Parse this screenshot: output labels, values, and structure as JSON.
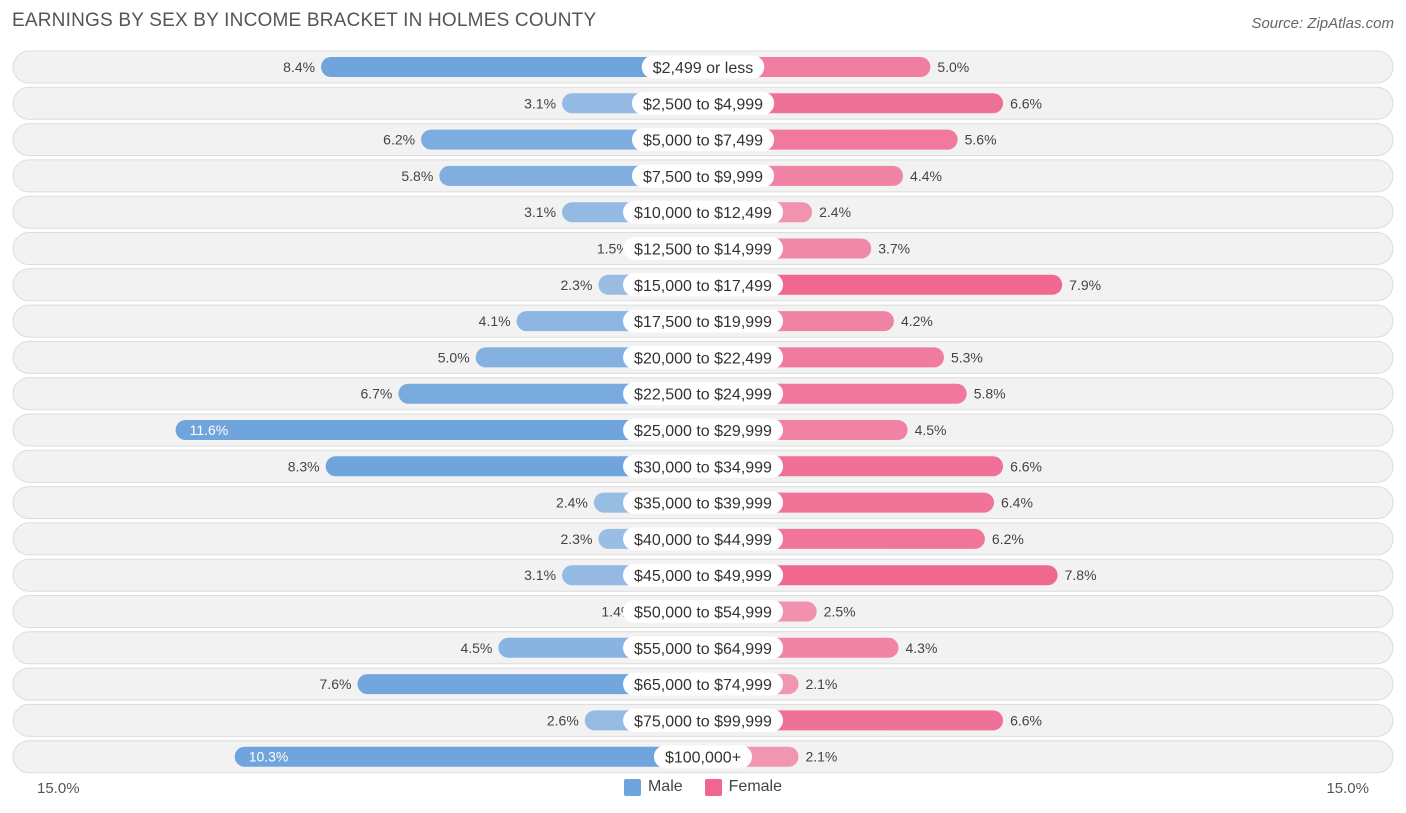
{
  "title": "EARNINGS BY SEX BY INCOME BRACKET IN HOLMES COUNTY",
  "source": "Source: ZipAtlas.com",
  "colors": {
    "male": "#6fa4dc",
    "male_light": "#a9c8ec",
    "female": "#f0668f",
    "female_light": "#f5a6be",
    "row_bg": "#f2f2f2",
    "row_border": "#dcdcdc"
  },
  "chart_data": {
    "type": "bar",
    "orientation": "horizontal-diverging",
    "categories": [
      "$2,499 or less",
      "$2,500 to $4,999",
      "$5,000 to $7,499",
      "$7,500 to $9,999",
      "$10,000 to $12,499",
      "$12,500 to $14,999",
      "$15,000 to $17,499",
      "$17,500 to $19,999",
      "$20,000 to $22,499",
      "$22,500 to $24,999",
      "$25,000 to $29,999",
      "$30,000 to $34,999",
      "$35,000 to $39,999",
      "$40,000 to $44,999",
      "$45,000 to $49,999",
      "$50,000 to $54,999",
      "$55,000 to $64,999",
      "$65,000 to $74,999",
      "$75,000 to $99,999",
      "$100,000+"
    ],
    "series": [
      {
        "name": "Male",
        "values": [
          8.4,
          3.1,
          6.2,
          5.8,
          3.1,
          1.5,
          2.3,
          4.1,
          5.0,
          6.7,
          11.6,
          8.3,
          2.4,
          2.3,
          3.1,
          1.4,
          4.5,
          7.6,
          2.6,
          10.3
        ]
      },
      {
        "name": "Female",
        "values": [
          5.0,
          6.6,
          5.6,
          4.4,
          2.4,
          3.7,
          7.9,
          4.2,
          5.3,
          5.8,
          4.5,
          6.6,
          6.4,
          6.2,
          7.8,
          2.5,
          4.3,
          2.1,
          6.6,
          2.1
        ]
      }
    ],
    "xlim": [
      0,
      15.0
    ],
    "axis_left_label": "15.0%",
    "axis_right_label": "15.0%",
    "value_suffix": "%",
    "legend": [
      "Male",
      "Female"
    ],
    "legend_position": "bottom-center"
  }
}
